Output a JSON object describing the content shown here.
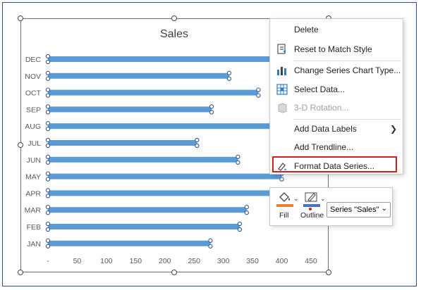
{
  "chart": {
    "title": "Sales",
    "bar_color": "#5b9bd5"
  },
  "chart_data": {
    "type": "bar",
    "orientation": "horizontal",
    "title": "Sales",
    "categories": [
      "JAN",
      "FEB",
      "MAR",
      "APR",
      "MAY",
      "JUN",
      "JUL",
      "AUG",
      "SEP",
      "OCT",
      "NOV",
      "DEC"
    ],
    "values": [
      278,
      328,
      340,
      420,
      400,
      325,
      255,
      390,
      280,
      360,
      310,
      390
    ],
    "series": [
      {
        "name": "Sales",
        "values": [
          278,
          328,
          340,
          420,
          400,
          325,
          255,
          390,
          280,
          360,
          310,
          390
        ]
      }
    ],
    "xlim": [
      0,
      450
    ],
    "x_ticks": [
      "-",
      "50",
      "100",
      "150",
      "200",
      "250",
      "300",
      "350",
      "400",
      "450"
    ],
    "grid": false,
    "legend": "none",
    "bar_color": "#5b9bd5"
  },
  "context_menu": {
    "items": [
      {
        "label": "Delete",
        "icon": "delete-icon",
        "disabled": false
      },
      {
        "label": "Reset to Match Style",
        "icon": "reset-style-icon",
        "disabled": false
      },
      {
        "label": "Change Series Chart Type...",
        "icon": "chart-type-icon",
        "disabled": false
      },
      {
        "label": "Select Data...",
        "icon": "select-data-icon",
        "disabled": false
      },
      {
        "label": "3-D Rotation...",
        "icon": "rotation-3d-icon",
        "disabled": true
      },
      {
        "label": "Add Data Labels",
        "icon": "",
        "disabled": false,
        "submenu": true
      },
      {
        "label": "Add Trendline...",
        "icon": "",
        "disabled": false
      },
      {
        "label": "Format Data Series...",
        "icon": "format-series-icon",
        "disabled": false,
        "highlighted": true
      }
    ]
  },
  "mini_toolbar": {
    "fill_label": "Fill",
    "outline_label": "Outline",
    "series_selected": "Series \"Sales\""
  },
  "colors": {
    "highlight": "#d11e1e",
    "fill_swatch": "#ed7d31",
    "outline_swatch": "#4472c4"
  }
}
